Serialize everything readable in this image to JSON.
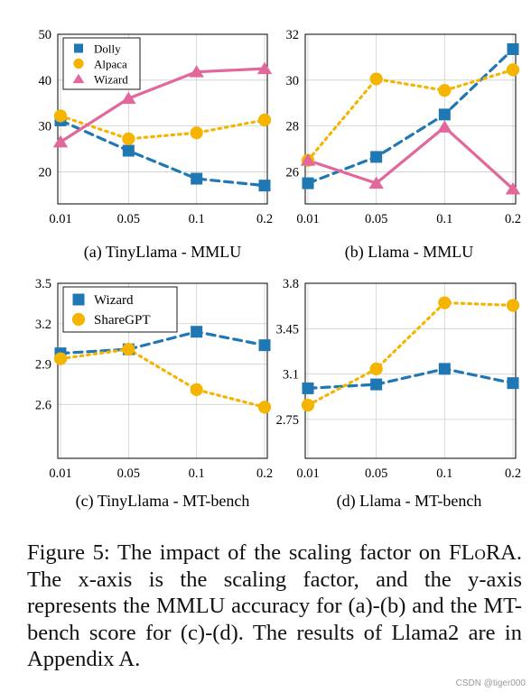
{
  "chart_data": [
    {
      "type": "line",
      "title": "(a) TinyLlama - MMLU",
      "categories": [
        "0.01",
        "0.05",
        "0.1",
        "0.2"
      ],
      "ylim": [
        13,
        50
      ],
      "yticks": [
        20,
        30,
        40,
        50
      ],
      "grid": true,
      "legend": "top-left",
      "series": [
        {
          "name": "Dolly",
          "color": "#1f77b4",
          "marker": "square",
          "line": "dashed",
          "values": [
            31.2,
            24.6,
            18.5,
            17
          ]
        },
        {
          "name": "Alpaca",
          "color": "#f5b400",
          "marker": "circle",
          "line": "dotted",
          "values": [
            32.2,
            27.2,
            28.5,
            31.3
          ]
        },
        {
          "name": "Wizard",
          "color": "#e2679a",
          "marker": "triangle",
          "line": "solid",
          "values": [
            26.5,
            36,
            41.8,
            42.5
          ]
        }
      ]
    },
    {
      "type": "line",
      "title": "(b) Llama - MMLU",
      "categories": [
        "0.01",
        "0.05",
        "0.1",
        "0.2"
      ],
      "ylim": [
        24.6,
        32
      ],
      "yticks": [
        26,
        28,
        30,
        32
      ],
      "grid": true,
      "legend": "none",
      "series": [
        {
          "name": "Dolly",
          "color": "#1f77b4",
          "marker": "square",
          "line": "dashed",
          "values": [
            25.5,
            26.65,
            28.5,
            31.35
          ]
        },
        {
          "name": "Alpaca",
          "color": "#f5b400",
          "marker": "circle",
          "line": "dotted",
          "values": [
            26.5,
            30.05,
            29.55,
            30.45
          ]
        },
        {
          "name": "Wizard",
          "color": "#e2679a",
          "marker": "triangle",
          "line": "solid",
          "values": [
            26.5,
            25.5,
            27.95,
            25.25
          ]
        }
      ]
    },
    {
      "type": "line",
      "title": "(c) TinyLlama - MT-bench",
      "categories": [
        "0.01",
        "0.05",
        "0.1",
        "0.2"
      ],
      "ylim": [
        2.2,
        3.5
      ],
      "yticks": [
        2.6,
        2.9,
        3.2,
        3.5
      ],
      "ytick_labels": [
        "2.6",
        "2.9",
        "3.2",
        "3.5"
      ],
      "grid": true,
      "legend": "top-left",
      "series": [
        {
          "name": "Wizard",
          "color": "#1f77b4",
          "marker": "square",
          "line": "dashed",
          "values": [
            2.98,
            3.01,
            3.14,
            3.04
          ]
        },
        {
          "name": "ShareGPT",
          "color": "#f5b400",
          "marker": "circle",
          "line": "dotted",
          "values": [
            2.94,
            3.01,
            2.71,
            2.58
          ]
        }
      ]
    },
    {
      "type": "line",
      "title": "(d) Llama - MT-bench",
      "categories": [
        "0.01",
        "0.05",
        "0.1",
        "0.2"
      ],
      "ylim": [
        2.45,
        3.8
      ],
      "yticks": [
        2.75,
        3.1,
        3.45,
        3.8
      ],
      "ytick_labels": [
        "2.75",
        "3.1",
        "3.45",
        "3.8"
      ],
      "grid": true,
      "legend": "none",
      "series": [
        {
          "name": "Wizard",
          "color": "#1f77b4",
          "marker": "square",
          "line": "dashed",
          "values": [
            2.99,
            3.02,
            3.14,
            3.03
          ]
        },
        {
          "name": "ShareGPT",
          "color": "#f5b400",
          "marker": "circle",
          "line": "dotted",
          "values": [
            2.86,
            3.14,
            3.65,
            3.63
          ]
        }
      ]
    }
  ],
  "caption": {
    "prefix": "Figure 5: The impact of the scaling factor on ",
    "method": "FLoRA",
    "rest": ". The x-axis is the scaling factor, and the y-axis represents the MMLU accuracy for (a)-(b) and the MT-bench score for (c)-(d). The results of Llama2 are in Appendix A."
  },
  "watermark": "CSDN @tiger000"
}
